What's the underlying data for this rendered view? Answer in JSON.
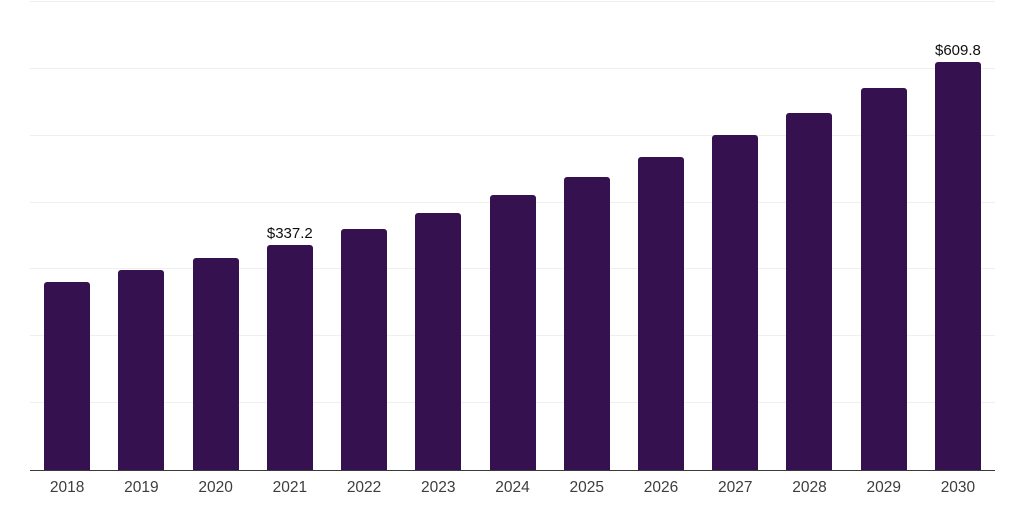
{
  "chart_data": {
    "type": "bar",
    "title": "",
    "categories": [
      "2018",
      "2019",
      "2020",
      "2021",
      "2022",
      "2023",
      "2024",
      "2025",
      "2026",
      "2027",
      "2028",
      "2029",
      "2030"
    ],
    "values": [
      280.8,
      299.0,
      317.5,
      337.2,
      360.1,
      384.9,
      410.8,
      438.7,
      468.5,
      500.4,
      534.4,
      570.8,
      609.8
    ],
    "bar_labels": [
      "",
      "",
      "",
      "$337.2",
      "",
      "",
      "",
      "",
      "",
      "",
      "",
      "",
      "$609.8"
    ],
    "xlabel": "",
    "ylabel": "",
    "ylim": [
      0,
      700
    ],
    "gridline_values": [
      100,
      200,
      300,
      400,
      500,
      600,
      700
    ],
    "grid": true,
    "legend": false,
    "colors": {
      "bar": "#361150",
      "gridline": "#efefef",
      "axis_line": "#3a3a3a",
      "x_tick_label": "#3d3d3d",
      "value_label": "#0f0f0f",
      "background": "#ffffff"
    }
  }
}
